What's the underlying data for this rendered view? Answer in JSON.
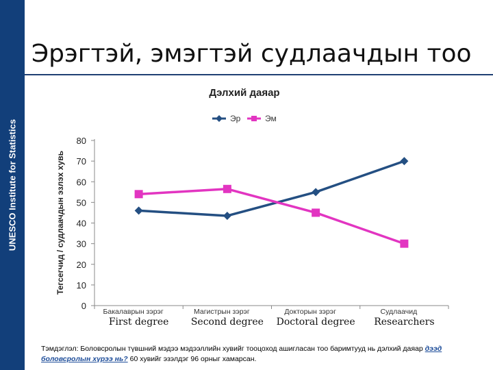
{
  "slide": {
    "title": "Эрэгтэй, эмэгтэй судлаачдын тоо",
    "sidebar_label": "UNESCO Institute for Statistics"
  },
  "chart_data": {
    "type": "line",
    "title": "Дэлхий даяар",
    "ylabel": "Тегсегчид / судлаачдын эзлэх хувь",
    "categories": [
      "Бакалаврын зэрэг",
      "Магистрын зэрэг",
      "Докторын зэрэг",
      "Судлаачид"
    ],
    "category_subtitles": [
      "First degree",
      "Second degree",
      "Doctoral degree",
      "Researchers"
    ],
    "ylim": [
      0,
      80
    ],
    "yticks": [
      0,
      10,
      20,
      30,
      40,
      50,
      60,
      70,
      80
    ],
    "grid": false,
    "legend_position": "top",
    "series": [
      {
        "name": "Эр",
        "values": [
          46,
          43.5,
          55,
          70
        ],
        "color": "#244f82",
        "marker": "diamond"
      },
      {
        "name": "Эм",
        "values": [
          54,
          56.5,
          45,
          30
        ],
        "color": "#e235c1",
        "marker": "square"
      }
    ]
  },
  "footnote": {
    "text_1": "Тэмдэглэл: Боловсролын түвшний мэдээ мэдээллийн хувийг тооцоход ашигласан тоо баримтууд нь дэлхий даяар ",
    "emph": "дээд боловсролын хүрээ нь?",
    "text_2": " 60 хувийг эзэлдэг 96 орныг хамарсан."
  }
}
